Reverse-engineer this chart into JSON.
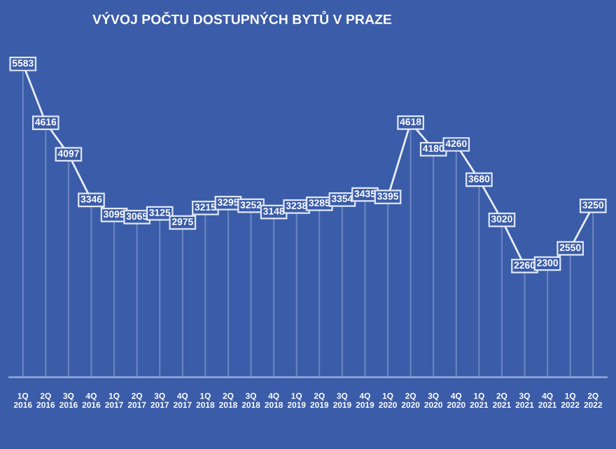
{
  "chart_data": {
    "type": "line",
    "title": "VÝVOJ POČTU DOSTUPNÝCH BYTŮ V PRAZE",
    "categories": [
      "1Q\n2016",
      "2Q\n2016",
      "3Q\n2016",
      "4Q\n2016",
      "1Q\n2017",
      "2Q\n2017",
      "3Q\n2017",
      "4Q\n2017",
      "1Q\n2018",
      "2Q\n2018",
      "3Q\n2018",
      "4Q\n2018",
      "1Q\n2019",
      "2Q\n2019",
      "3Q\n2019",
      "4Q\n2019",
      "1Q\n2020",
      "2Q\n2020",
      "3Q\n2020",
      "4Q\n2020",
      "1Q\n2021",
      "2Q\n2021",
      "3Q\n2021",
      "4Q\n2021",
      "1Q\n2022",
      "2Q\n2022"
    ],
    "series": [
      {
        "color": "#e8eef8",
        "values": [
          5583,
          4616,
          4097,
          3346,
          3099,
          3065,
          3125,
          2975,
          3215,
          3295,
          3252,
          3148,
          3238,
          3285,
          3354,
          3435,
          3395,
          4618,
          4180,
          4260,
          3680,
          3020,
          2260,
          2300,
          2550,
          3250
        ]
      }
    ],
    "data_labels": true,
    "grid": "x",
    "legend": false,
    "marker": "square",
    "line_style": "solid"
  }
}
